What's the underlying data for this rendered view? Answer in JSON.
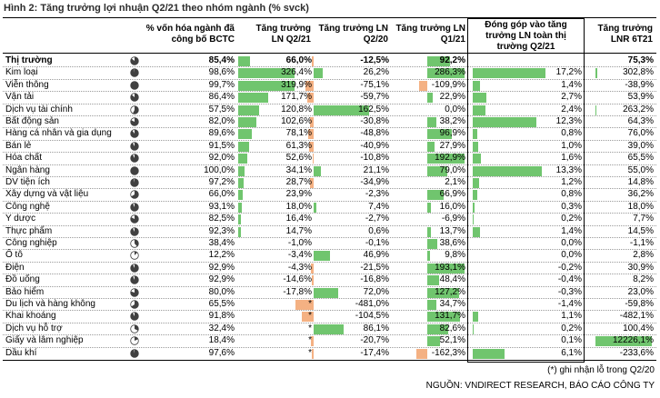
{
  "title": "Hình 2: Tăng trưởng lợi nhuận Q2/21 theo nhóm ngành (% svck)",
  "columns": {
    "cap": "% vốn hóa ngành đã\ncông bố BCTC",
    "q221": "Tăng trưởng\nLN Q2/21",
    "q220": "Tăng trưởng LN\nQ2/20",
    "q121": "Tăng trưởng LN\nQ1/21",
    "contrib": "Đóng góp vào tăng\ntrưởng LN toàn thị\ntrường Q2/21",
    "h121": "Tăng trưởng\nLNR 6T21"
  },
  "colors": {
    "pos_bar": "#70c56e",
    "neg_bar": "#f4b183",
    "icon": "#404040"
  },
  "rows": [
    {
      "name": "Thị trường",
      "bold": true,
      "cap": "85,4%",
      "cap_pct": 85.4,
      "q221": "66,0%",
      "q221_v": 66.0,
      "q220": "-12,5%",
      "q220_v": -12.5,
      "q121": "92,2%",
      "q121_v": 92.2,
      "contrib": "",
      "contrib_v": 0,
      "h121": "75,3%",
      "h121_v": 75.3
    },
    {
      "name": "Kim loại",
      "cap": "98,6%",
      "cap_pct": 98.6,
      "q221": "326,4%",
      "q221_v": 326.4,
      "q220": "26,2%",
      "q220_v": 26.2,
      "q121": "286,3%",
      "q121_v": 286.3,
      "contrib": "17,2%",
      "contrib_v": 17.2,
      "h121": "302,8%",
      "h121_v": 302.8
    },
    {
      "name": "Viễn thông",
      "cap": "99,7%",
      "cap_pct": 99.7,
      "q221": "319,9%",
      "q221_v": 319.9,
      "q220": "-75,1%",
      "q220_v": -75.1,
      "q121": "-109,9%",
      "q121_v": -109.9,
      "contrib": "1,4%",
      "contrib_v": 1.4,
      "h121": "-38,9%",
      "h121_v": -38.9
    },
    {
      "name": "Vận tải",
      "cap": "86,4%",
      "cap_pct": 86.4,
      "q221": "171,7%",
      "q221_v": 171.7,
      "q220": "-59,7%",
      "q220_v": -59.7,
      "q121": "22,9%",
      "q121_v": 22.9,
      "contrib": "2,7%",
      "contrib_v": 2.7,
      "h121": "53,9%",
      "h121_v": 53.9
    },
    {
      "name": "Dịch vụ tài chính",
      "cap": "57,5%",
      "cap_pct": 57.5,
      "q221": "120,8%",
      "q221_v": 120.8,
      "q220": "162,5%",
      "q220_v": 162.5,
      "q121": "0,0%",
      "q121_v": 0,
      "contrib": "2,4%",
      "contrib_v": 2.4,
      "h121": "263,2%",
      "h121_v": 263.2
    },
    {
      "name": "Bất động sản",
      "cap": "82,0%",
      "cap_pct": 82.0,
      "q221": "102,6%",
      "q221_v": 102.6,
      "q220": "-30,8%",
      "q220_v": -30.8,
      "q121": "38,2%",
      "q121_v": 38.2,
      "contrib": "12,3%",
      "contrib_v": 12.3,
      "h121": "64,3%",
      "h121_v": 64.3
    },
    {
      "name": "Hàng cá nhân và gia dụng",
      "cap": "89,6%",
      "cap_pct": 89.6,
      "q221": "78,1%",
      "q221_v": 78.1,
      "q220": "-48,8%",
      "q220_v": -48.8,
      "q121": "96,9%",
      "q121_v": 96.9,
      "contrib": "0,8%",
      "contrib_v": 0.8,
      "h121": "76,0%",
      "h121_v": 76.0
    },
    {
      "name": "Bán lẻ",
      "cap": "91,5%",
      "cap_pct": 91.5,
      "q221": "61,3%",
      "q221_v": 61.3,
      "q220": "-40,9%",
      "q220_v": -40.9,
      "q121": "27,9%",
      "q121_v": 27.9,
      "contrib": "1,0%",
      "contrib_v": 1.0,
      "h121": "39,0%",
      "h121_v": 39.0
    },
    {
      "name": "Hóa chất",
      "cap": "92,0%",
      "cap_pct": 92.0,
      "q221": "52,6%",
      "q221_v": 52.6,
      "q220": "-10,8%",
      "q220_v": -10.8,
      "q121": "192,9%",
      "q121_v": 192.9,
      "contrib": "1,6%",
      "contrib_v": 1.6,
      "h121": "65,5%",
      "h121_v": 65.5
    },
    {
      "name": "Ngân hàng",
      "cap": "100,0%",
      "cap_pct": 100.0,
      "q221": "34,1%",
      "q221_v": 34.1,
      "q220": "21,1%",
      "q220_v": 21.1,
      "q121": "79,0%",
      "q121_v": 79.0,
      "contrib": "13,3%",
      "contrib_v": 13.3,
      "h121": "55,0%",
      "h121_v": 55.0
    },
    {
      "name": "DV tiện ích",
      "cap": "97,2%",
      "cap_pct": 97.2,
      "q221": "28,7%",
      "q221_v": 28.7,
      "q220": "-34,9%",
      "q220_v": -34.9,
      "q121": "2,1%",
      "q121_v": 2.1,
      "contrib": "1,2%",
      "contrib_v": 1.2,
      "h121": "14,8%",
      "h121_v": 14.8
    },
    {
      "name": "Xây dựng và vật liệu",
      "cap": "66,0%",
      "cap_pct": 66.0,
      "q221": "23,9%",
      "q221_v": 23.9,
      "q220": "-2,3%",
      "q220_v": -2.3,
      "q121": "66,9%",
      "q121_v": 66.9,
      "contrib": "0,8%",
      "contrib_v": 0.8,
      "h121": "36,2%",
      "h121_v": 36.2
    },
    {
      "name": "Công nghệ",
      "cap": "93,1%",
      "cap_pct": 93.1,
      "q221": "18,0%",
      "q221_v": 18.0,
      "q220": "7,4%",
      "q220_v": 7.4,
      "q121": "16,0%",
      "q121_v": 16.0,
      "contrib": "0,3%",
      "contrib_v": 0.3,
      "h121": "18,0%",
      "h121_v": 18.0
    },
    {
      "name": "Y dược",
      "cap": "82,5%",
      "cap_pct": 82.5,
      "q221": "16,4%",
      "q221_v": 16.4,
      "q220": "-2,7%",
      "q220_v": -2.7,
      "q121": "-6,9%",
      "q121_v": -6.9,
      "contrib": "0,2%",
      "contrib_v": 0.2,
      "h121": "7,7%",
      "h121_v": 7.7
    },
    {
      "name": "Thực phẩm",
      "cap": "92,3%",
      "cap_pct": 92.3,
      "q221": "14,7%",
      "q221_v": 14.7,
      "q220": "0,6%",
      "q220_v": 0.6,
      "q121": "13,7%",
      "q121_v": 13.7,
      "contrib": "1,4%",
      "contrib_v": 1.4,
      "h121": "14,5%",
      "h121_v": 14.5
    },
    {
      "name": "Công nghiệp",
      "cap": "38,4%",
      "cap_pct": 38.4,
      "q221": "-1,0%",
      "q221_v": -1.0,
      "q220": "-0,1%",
      "q220_v": -0.1,
      "q121": "38,6%",
      "q121_v": 38.6,
      "contrib": "0,0%",
      "contrib_v": 0,
      "h121": "-1,1%",
      "h121_v": -1.1
    },
    {
      "name": "Ô tô",
      "cap": "12,2%",
      "cap_pct": 12.2,
      "q221": "-3,4%",
      "q221_v": -3.4,
      "q220": "46,9%",
      "q220_v": 46.9,
      "q121": "9,8%",
      "q121_v": 9.8,
      "contrib": "0,0%",
      "contrib_v": 0,
      "h121": "2,8%",
      "h121_v": 2.8
    },
    {
      "name": "Điện",
      "cap": "92,9%",
      "cap_pct": 92.9,
      "q221": "-4,3%",
      "q221_v": -4.3,
      "q220": "-21,5%",
      "q220_v": -21.5,
      "q121": "193,1%",
      "q121_v": 193.1,
      "contrib": "-0,2%",
      "contrib_v": -0.2,
      "h121": "30,9%",
      "h121_v": 30.9
    },
    {
      "name": "Đồ uống",
      "cap": "92,9%",
      "cap_pct": 92.9,
      "q221": "-14,6%",
      "q221_v": -14.6,
      "q220": "-16,8%",
      "q220_v": -16.8,
      "q121": "48,4%",
      "q121_v": 48.4,
      "contrib": "-0,4%",
      "contrib_v": -0.4,
      "h121": "8,2%",
      "h121_v": 8.2
    },
    {
      "name": "Bảo hiểm",
      "cap": "80,0%",
      "cap_pct": 80.0,
      "q221": "-17,8%",
      "q221_v": -17.8,
      "q220": "72,0%",
      "q220_v": 72.0,
      "q121": "127,2%",
      "q121_v": 127.2,
      "contrib": "-0,3%",
      "contrib_v": -0.3,
      "h121": "23,0%",
      "h121_v": 23.0
    },
    {
      "name": "Du lịch và hàng không",
      "cap": "65,5%",
      "cap_pct": 65.5,
      "q221": "*",
      "q221_v": 0,
      "q220": "-481,0%",
      "q220_v": -481.0,
      "q121": "34,7%",
      "q121_v": 34.7,
      "contrib": "-1,4%",
      "contrib_v": -1.4,
      "h121": "-59,8%",
      "h121_v": -59.8
    },
    {
      "name": "Khai khoáng",
      "cap": "91,8%",
      "cap_pct": 91.8,
      "q221": "*",
      "q221_v": 0,
      "q220": "-104,5%",
      "q220_v": -104.5,
      "q121": "131,7%",
      "q121_v": 131.7,
      "contrib": "1,1%",
      "contrib_v": 1.1,
      "h121": "-482,1%",
      "h121_v": -482.1
    },
    {
      "name": "Dịch vụ hỗ trợ",
      "cap": "32,4%",
      "cap_pct": 32.4,
      "q221": "*",
      "q221_v": 0,
      "q220": "86,1%",
      "q220_v": 86.1,
      "q121": "82,6%",
      "q121_v": 82.6,
      "contrib": "0,2%",
      "contrib_v": 0.2,
      "h121": "100,4%",
      "h121_v": 100.4
    },
    {
      "name": "Giấy và lâm nghiệp",
      "cap": "18,4%",
      "cap_pct": 18.4,
      "q221": "*",
      "q221_v": 0,
      "q220": "-20,7%",
      "q220_v": -20.7,
      "q121": "52,1%",
      "q121_v": 52.1,
      "contrib": "0,1%",
      "contrib_v": 0.1,
      "h121": "12226,1%",
      "h121_v": 12226.1
    },
    {
      "name": "Dầu khí",
      "cap": "97,6%",
      "cap_pct": 97.6,
      "q221": "*",
      "q221_v": 0,
      "q220": "-17,4%",
      "q220_v": -17.4,
      "q121": "-162,3%",
      "q121_v": -162.3,
      "contrib": "6,1%",
      "contrib_v": 6.1,
      "h121": "-233,6%",
      "h121_v": -233.6
    }
  ],
  "footnote": "(*) ghi nhận lỗ trong Q2/20",
  "source": "NGUỒN: VNDIRECT RESEARCH, BÁO CÁO CÔNG TY"
}
